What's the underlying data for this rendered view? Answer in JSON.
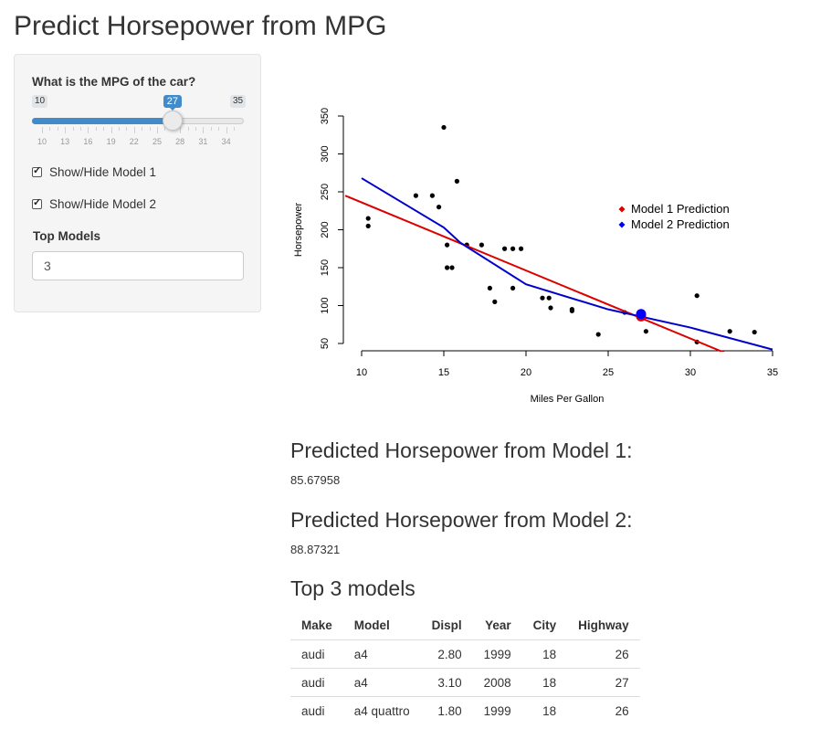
{
  "page_title": "Predict Horsepower from MPG",
  "sidebar": {
    "slider": {
      "label": "What is the MPG of the car?",
      "min": 10,
      "max": 35,
      "value": 27,
      "min_label": "10",
      "max_label": "35",
      "value_label": "27",
      "grid_labels": [
        "10",
        "13",
        "16",
        "19",
        "22",
        "25",
        "28",
        "31",
        "34"
      ],
      "accent_color": "#428bca"
    },
    "checkboxes": [
      {
        "label": "Show/Hide Model 1",
        "checked": true
      },
      {
        "label": "Show/Hide Model 2",
        "checked": true
      }
    ],
    "top_models": {
      "label": "Top Models",
      "value": "3"
    }
  },
  "chart_data": {
    "type": "scatter",
    "xlabel": "Miles Per Gallon",
    "ylabel": "Horsepower",
    "xlim": [
      10,
      35
    ],
    "ylim": [
      50,
      350
    ],
    "x_ticks": [
      10,
      15,
      20,
      25,
      30,
      35
    ],
    "y_ticks": [
      50,
      100,
      150,
      200,
      250,
      300,
      350
    ],
    "points": [
      [
        10.4,
        205
      ],
      [
        10.4,
        215
      ],
      [
        13.3,
        245
      ],
      [
        14.3,
        245
      ],
      [
        14.7,
        230
      ],
      [
        15.0,
        335
      ],
      [
        15.2,
        180
      ],
      [
        15.2,
        150
      ],
      [
        15.5,
        150
      ],
      [
        15.8,
        264
      ],
      [
        16.4,
        180
      ],
      [
        17.3,
        180
      ],
      [
        17.8,
        123
      ],
      [
        18.1,
        105
      ],
      [
        18.7,
        175
      ],
      [
        19.2,
        123
      ],
      [
        19.2,
        175
      ],
      [
        19.7,
        175
      ],
      [
        21.0,
        110
      ],
      [
        21.4,
        110
      ],
      [
        21.5,
        97
      ],
      [
        22.8,
        93
      ],
      [
        22.8,
        95
      ],
      [
        24.4,
        62
      ],
      [
        26.0,
        91
      ],
      [
        27.3,
        66
      ],
      [
        30.4,
        52
      ],
      [
        30.4,
        113
      ],
      [
        32.4,
        66
      ],
      [
        33.9,
        65
      ]
    ],
    "model1_line": {
      "name": "Model 1 Prediction",
      "color": "#dd0000",
      "x": [
        9,
        32.4
      ],
      "y": [
        245,
        35
      ]
    },
    "model2_line": {
      "name": "Model 2 Prediction",
      "color": "#0000cc",
      "x": [
        10,
        15,
        16,
        20,
        25,
        30,
        35
      ],
      "y": [
        268,
        203,
        183,
        128,
        95,
        71,
        42
      ]
    },
    "model1_prediction": {
      "x": 27,
      "y": 85.67958,
      "color": "#dd0000"
    },
    "model2_prediction": {
      "x": 27,
      "y": 88.87321,
      "color": "#0000ff"
    },
    "legend": {
      "placement": "top-right",
      "entries": [
        {
          "label": "Model 1 Prediction",
          "color": "#dd0000"
        },
        {
          "label": "Model 2 Prediction",
          "color": "#0000ff"
        }
      ]
    },
    "grid": false
  },
  "results": {
    "model1_heading": "Predicted Horsepower from Model 1:",
    "model1_value": "85.67958",
    "model2_heading": "Predicted Horsepower from Model 2:",
    "model2_value": "88.87321",
    "top_heading": "Top 3 models"
  },
  "table": {
    "columns": [
      "Make",
      "Model",
      "Displ",
      "Year",
      "City",
      "Highway"
    ],
    "rows": [
      [
        "audi",
        "a4",
        "2.80",
        "1999",
        "18",
        "26"
      ],
      [
        "audi",
        "a4",
        "3.10",
        "2008",
        "18",
        "27"
      ],
      [
        "audi",
        "a4 quattro",
        "1.80",
        "1999",
        "18",
        "26"
      ]
    ]
  }
}
